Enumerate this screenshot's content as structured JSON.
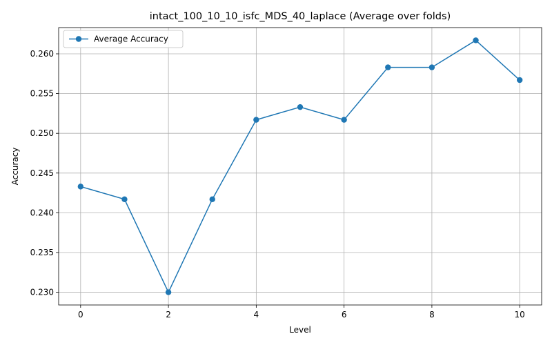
{
  "chart_data": {
    "type": "line",
    "title": "intact_100_10_10_isfc_MDS_40_laplace (Average over folds)",
    "xlabel": "Level",
    "ylabel": "Accuracy",
    "x": [
      0,
      1,
      2,
      3,
      4,
      5,
      6,
      7,
      8,
      9,
      10
    ],
    "series": [
      {
        "name": "Average Accuracy",
        "values": [
          0.2433,
          0.2417,
          0.23,
          0.2417,
          0.2517,
          0.2533,
          0.2517,
          0.2583,
          0.2583,
          0.2617,
          0.2567
        ],
        "color": "#1f77b4",
        "marker": "circle"
      }
    ],
    "xlim": [
      -0.5,
      10.5
    ],
    "ylim": [
      0.2284,
      0.2633
    ],
    "xticks": [
      0,
      2,
      4,
      6,
      8,
      10
    ],
    "xtick_labels": [
      "0",
      "2",
      "4",
      "6",
      "8",
      "10"
    ],
    "yticks": [
      0.23,
      0.235,
      0.24,
      0.245,
      0.25,
      0.255,
      0.26
    ],
    "ytick_labels": [
      "0.230",
      "0.235",
      "0.240",
      "0.245",
      "0.250",
      "0.255",
      "0.260"
    ],
    "grid": true,
    "legend": "upper-left"
  }
}
